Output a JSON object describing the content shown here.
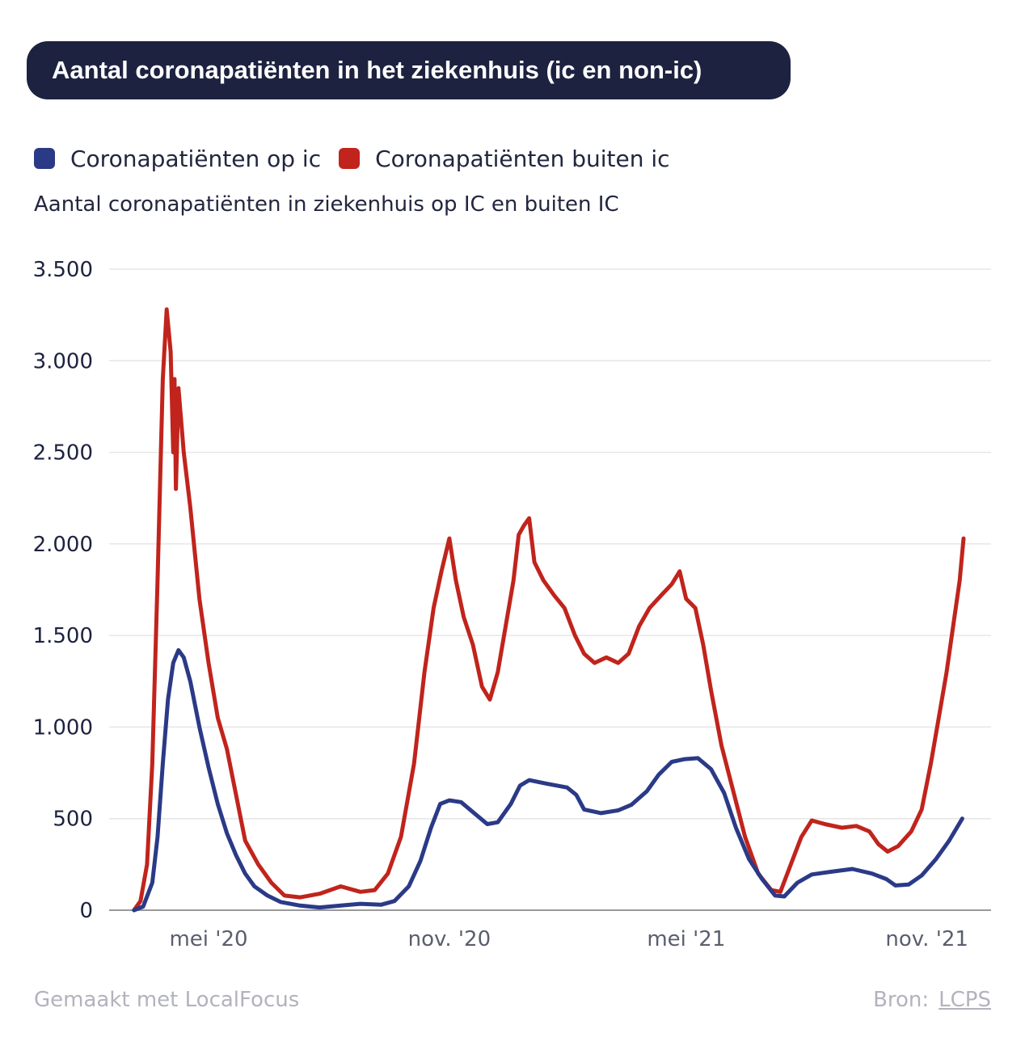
{
  "header": {
    "title": "Aantal coronapatiënten in het ziekenhuis (ic en non-ic)"
  },
  "legend": [
    {
      "label": "Coronapatiënten op ic",
      "color": "#2b3a87"
    },
    {
      "label": "Coronapatiënten buiten ic",
      "color": "#c0241c"
    }
  ],
  "subtitle": "Aantal coronapatiënten in ziekenhuis op IC en buiten IC",
  "footer": {
    "made_with": "Gemaakt met LocalFocus",
    "source_label": "Bron:",
    "source_link": "LCPS"
  },
  "chart_data": {
    "type": "line",
    "title": "Aantal coronapatiënten in het ziekenhuis (ic en non-ic)",
    "ylabel": "Aantal coronapatiënten in ziekenhuis op IC en buiten IC",
    "ylim": [
      0,
      3500
    ],
    "yticks": [
      0,
      500,
      1000,
      1500,
      2000,
      2500,
      3000,
      3500
    ],
    "ytick_labels": [
      "0",
      "500",
      "1.000",
      "1.500",
      "2.000",
      "2.500",
      "3.000",
      "3.500"
    ],
    "xlim": [
      "2020-02-15",
      "2021-12-20"
    ],
    "xticks": [
      "2020-05-01",
      "2020-11-01",
      "2021-05-01",
      "2021-11-01"
    ],
    "xtick_labels": [
      "mei '20",
      "nov. '20",
      "mei '21",
      "nov. '21"
    ],
    "grid": "horizontal",
    "legend_position": "top-left",
    "series": [
      {
        "name": "Coronapatiënten op ic",
        "color": "#2b3a87",
        "points": [
          [
            "2020-03-05",
            0
          ],
          [
            "2020-03-12",
            20
          ],
          [
            "2020-03-19",
            150
          ],
          [
            "2020-03-23",
            400
          ],
          [
            "2020-03-27",
            800
          ],
          [
            "2020-03-31",
            1150
          ],
          [
            "2020-04-04",
            1350
          ],
          [
            "2020-04-08",
            1420
          ],
          [
            "2020-04-12",
            1380
          ],
          [
            "2020-04-17",
            1250
          ],
          [
            "2020-04-24",
            1000
          ],
          [
            "2020-05-01",
            780
          ],
          [
            "2020-05-08",
            580
          ],
          [
            "2020-05-15",
            420
          ],
          [
            "2020-05-22",
            300
          ],
          [
            "2020-05-29",
            200
          ],
          [
            "2020-06-05",
            130
          ],
          [
            "2020-06-15",
            80
          ],
          [
            "2020-06-25",
            45
          ],
          [
            "2020-07-10",
            25
          ],
          [
            "2020-07-25",
            15
          ],
          [
            "2020-08-10",
            25
          ],
          [
            "2020-08-25",
            35
          ],
          [
            "2020-09-10",
            30
          ],
          [
            "2020-09-20",
            50
          ],
          [
            "2020-10-01",
            130
          ],
          [
            "2020-10-10",
            270
          ],
          [
            "2020-10-18",
            450
          ],
          [
            "2020-10-25",
            580
          ],
          [
            "2020-11-01",
            600
          ],
          [
            "2020-11-10",
            590
          ],
          [
            "2020-11-20",
            530
          ],
          [
            "2020-11-30",
            470
          ],
          [
            "2020-12-08",
            480
          ],
          [
            "2020-12-18",
            580
          ],
          [
            "2020-12-25",
            680
          ],
          [
            "2021-01-01",
            710
          ],
          [
            "2021-01-15",
            690
          ],
          [
            "2021-01-30",
            670
          ],
          [
            "2021-02-06",
            630
          ],
          [
            "2021-02-12",
            550
          ],
          [
            "2021-02-25",
            530
          ],
          [
            "2021-03-10",
            545
          ],
          [
            "2021-03-20",
            575
          ],
          [
            "2021-04-01",
            650
          ],
          [
            "2021-04-10",
            740
          ],
          [
            "2021-04-20",
            810
          ],
          [
            "2021-04-30",
            825
          ],
          [
            "2021-05-10",
            830
          ],
          [
            "2021-05-20",
            770
          ],
          [
            "2021-05-30",
            640
          ],
          [
            "2021-06-08",
            450
          ],
          [
            "2021-06-18",
            280
          ],
          [
            "2021-06-28",
            170
          ],
          [
            "2021-07-08",
            80
          ],
          [
            "2021-07-15",
            75
          ],
          [
            "2021-07-25",
            150
          ],
          [
            "2021-08-05",
            195
          ],
          [
            "2021-08-20",
            210
          ],
          [
            "2021-09-05",
            225
          ],
          [
            "2021-09-20",
            200
          ],
          [
            "2021-10-01",
            170
          ],
          [
            "2021-10-08",
            135
          ],
          [
            "2021-10-18",
            140
          ],
          [
            "2021-10-28",
            190
          ],
          [
            "2021-11-08",
            280
          ],
          [
            "2021-11-18",
            380
          ],
          [
            "2021-11-28",
            500
          ]
        ]
      },
      {
        "name": "Coronapatiënten buiten ic",
        "color": "#c0241c",
        "points": [
          [
            "2020-03-05",
            0
          ],
          [
            "2020-03-10",
            50
          ],
          [
            "2020-03-15",
            250
          ],
          [
            "2020-03-19",
            800
          ],
          [
            "2020-03-23",
            1800
          ],
          [
            "2020-03-27",
            2900
          ],
          [
            "2020-03-30",
            3280
          ],
          [
            "2020-04-02",
            3050
          ],
          [
            "2020-04-04",
            2500
          ],
          [
            "2020-04-05",
            2900
          ],
          [
            "2020-04-06",
            2300
          ],
          [
            "2020-04-08",
            2850
          ],
          [
            "2020-04-12",
            2500
          ],
          [
            "2020-04-17",
            2200
          ],
          [
            "2020-04-24",
            1700
          ],
          [
            "2020-05-01",
            1350
          ],
          [
            "2020-05-08",
            1050
          ],
          [
            "2020-05-15",
            880
          ],
          [
            "2020-05-22",
            630
          ],
          [
            "2020-05-29",
            380
          ],
          [
            "2020-06-08",
            250
          ],
          [
            "2020-06-18",
            150
          ],
          [
            "2020-06-28",
            80
          ],
          [
            "2020-07-10",
            70
          ],
          [
            "2020-07-25",
            90
          ],
          [
            "2020-08-10",
            130
          ],
          [
            "2020-08-25",
            100
          ],
          [
            "2020-09-05",
            110
          ],
          [
            "2020-09-15",
            200
          ],
          [
            "2020-09-25",
            400
          ],
          [
            "2020-10-05",
            800
          ],
          [
            "2020-10-13",
            1300
          ],
          [
            "2020-10-20",
            1650
          ],
          [
            "2020-10-26",
            1850
          ],
          [
            "2020-11-01",
            2030
          ],
          [
            "2020-11-06",
            1800
          ],
          [
            "2020-11-12",
            1600
          ],
          [
            "2020-11-19",
            1450
          ],
          [
            "2020-11-26",
            1220
          ],
          [
            "2020-12-02",
            1150
          ],
          [
            "2020-12-08",
            1300
          ],
          [
            "2020-12-14",
            1550
          ],
          [
            "2020-12-20",
            1800
          ],
          [
            "2020-12-24",
            2050
          ],
          [
            "2020-12-28",
            2100
          ],
          [
            "2021-01-01",
            2140
          ],
          [
            "2021-01-05",
            1900
          ],
          [
            "2021-01-12",
            1800
          ],
          [
            "2021-01-20",
            1720
          ],
          [
            "2021-01-28",
            1650
          ],
          [
            "2021-02-05",
            1500
          ],
          [
            "2021-02-12",
            1400
          ],
          [
            "2021-02-20",
            1350
          ],
          [
            "2021-03-01",
            1380
          ],
          [
            "2021-03-10",
            1350
          ],
          [
            "2021-03-18",
            1400
          ],
          [
            "2021-03-26",
            1550
          ],
          [
            "2021-04-03",
            1650
          ],
          [
            "2021-04-12",
            1720
          ],
          [
            "2021-04-20",
            1780
          ],
          [
            "2021-04-26",
            1850
          ],
          [
            "2021-05-01",
            1700
          ],
          [
            "2021-05-08",
            1650
          ],
          [
            "2021-05-14",
            1450
          ],
          [
            "2021-05-20",
            1200
          ],
          [
            "2021-05-28",
            900
          ],
          [
            "2021-06-06",
            650
          ],
          [
            "2021-06-15",
            400
          ],
          [
            "2021-06-25",
            200
          ],
          [
            "2021-07-05",
            110
          ],
          [
            "2021-07-12",
            100
          ],
          [
            "2021-07-20",
            250
          ],
          [
            "2021-07-28",
            400
          ],
          [
            "2021-08-05",
            490
          ],
          [
            "2021-08-15",
            470
          ],
          [
            "2021-08-28",
            450
          ],
          [
            "2021-09-08",
            460
          ],
          [
            "2021-09-18",
            430
          ],
          [
            "2021-09-25",
            360
          ],
          [
            "2021-10-02",
            320
          ],
          [
            "2021-10-10",
            350
          ],
          [
            "2021-10-20",
            430
          ],
          [
            "2021-10-28",
            550
          ],
          [
            "2021-11-04",
            800
          ],
          [
            "2021-11-10",
            1050
          ],
          [
            "2021-11-16",
            1300
          ],
          [
            "2021-11-22",
            1600
          ],
          [
            "2021-11-26",
            1800
          ],
          [
            "2021-11-29",
            2030
          ]
        ]
      }
    ]
  }
}
